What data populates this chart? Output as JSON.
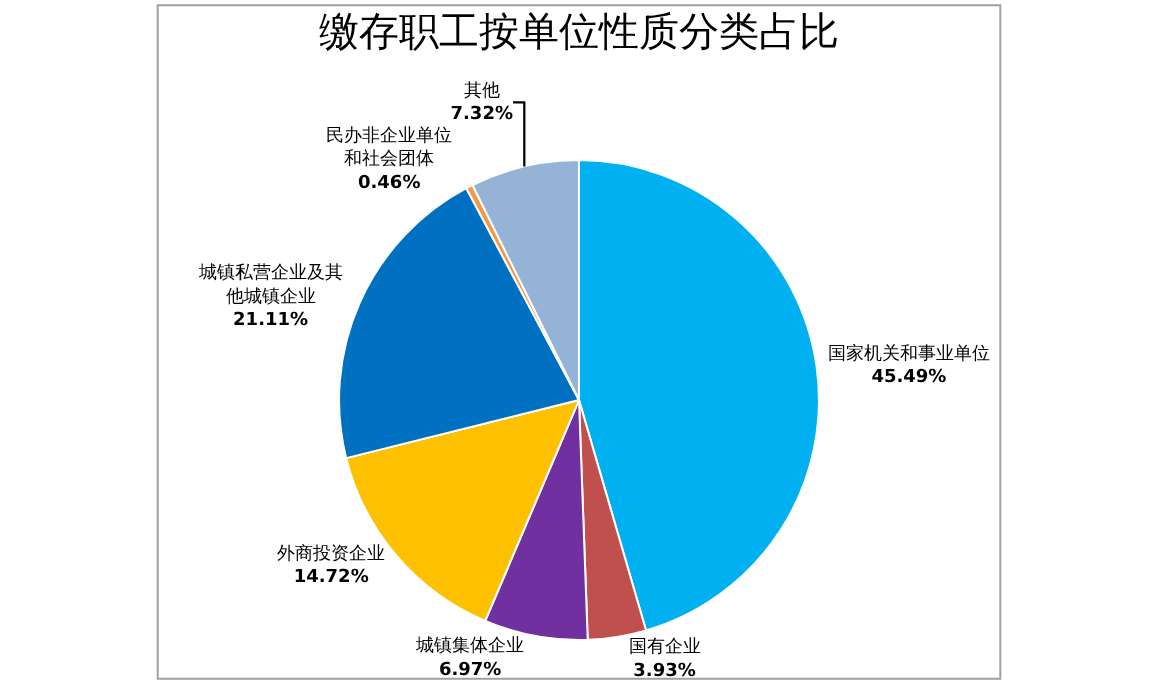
{
  "chart_data": {
    "type": "pie",
    "title": "缴存职工按单位性质分类占比",
    "categories": [
      "国家机关和事业单位",
      "国有企业",
      "城镇集体企业",
      "外商投资企业",
      "城镇私营企业及其他城镇企业",
      "民办非企业单位和社会团体",
      "其他"
    ],
    "values": [
      45.49,
      3.93,
      6.97,
      14.72,
      21.11,
      0.46,
      7.32
    ],
    "value_labels": [
      "45.49%",
      "3.93%",
      "6.97%",
      "14.72%",
      "21.11%",
      "0.46%",
      "7.32%"
    ],
    "colors": [
      "#00b0f0",
      "#c0504d",
      "#7030a0",
      "#ffc000",
      "#0070c0",
      "#f79646",
      "#95b3d7"
    ],
    "legend": false
  }
}
